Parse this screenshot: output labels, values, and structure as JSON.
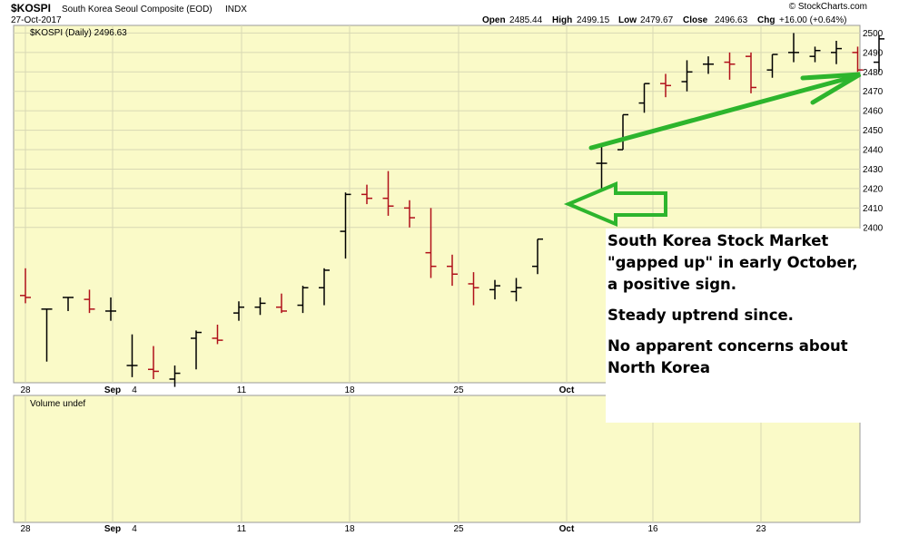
{
  "header": {
    "symbol": "$KOSPI",
    "name": "South Korea Seoul Composite (EOD)",
    "exchange": "INDX",
    "date": "27-Oct-2017",
    "open_label": "Open",
    "open": "2485.44",
    "high_label": "High",
    "high": "2499.15",
    "low_label": "Low",
    "low": "2479.67",
    "close_label": "Close",
    "close": "2496.63",
    "chg_label": "Chg",
    "chg": "+16.00 (+0.64%)",
    "watermark": "© StockCharts.com"
  },
  "legend": {
    "price": "$KOSPI (Daily) 2496.63",
    "volume": "Volume undef"
  },
  "annotation": {
    "line1": "South Korea Stock Market \"gapped up\" in early October, a positive sign.",
    "line2": "Steady uptrend since.",
    "line3": "No apparent concerns about North Korea"
  },
  "colors": {
    "panel_bg": "#fafac8",
    "up": "#000000",
    "down": "#b0101a",
    "arrow": "#2db52d",
    "grid": "#d8d8b4"
  },
  "chart_data": {
    "type": "ohlc",
    "title": "$KOSPI (Daily) 2496.63",
    "ylim": [
      2322,
      2503
    ],
    "yticks": [
      2400,
      2410,
      2420,
      2430,
      2440,
      2450,
      2460,
      2470,
      2480,
      2490,
      2500
    ],
    "x_labels": [
      "28",
      "Sep",
      "4",
      "11",
      "18",
      "25",
      "Oct",
      "16",
      "23"
    ],
    "series": [
      {
        "date": "2017-08-28",
        "open": 2365,
        "high": 2379,
        "low": 2361,
        "close": 2364
      },
      {
        "date": "2017-08-29",
        "open": 2358,
        "high": 2358,
        "low": 2331,
        "close": 2358
      },
      {
        "date": "2017-08-30",
        "open": 2364,
        "high": 2364,
        "low": 2357,
        "close": 2364
      },
      {
        "date": "2017-08-31",
        "open": 2363,
        "high": 2368,
        "low": 2356,
        "close": 2358
      },
      {
        "date": "2017-09-01",
        "open": 2357,
        "high": 2364,
        "low": 2352,
        "close": 2357
      },
      {
        "date": "2017-09-04",
        "open": 2329,
        "high": 2345,
        "low": 2323,
        "close": 2329
      },
      {
        "date": "2017-09-05",
        "open": 2327,
        "high": 2339,
        "low": 2322,
        "close": 2326
      },
      {
        "date": "2017-09-06",
        "open": 2322,
        "high": 2329,
        "low": 2318,
        "close": 2325
      },
      {
        "date": "2017-09-07",
        "open": 2343,
        "high": 2347,
        "low": 2327,
        "close": 2346
      },
      {
        "date": "2017-09-08",
        "open": 2343,
        "high": 2350,
        "low": 2340,
        "close": 2342
      },
      {
        "date": "2017-09-11",
        "open": 2356,
        "high": 2362,
        "low": 2352,
        "close": 2359
      },
      {
        "date": "2017-09-12",
        "open": 2359,
        "high": 2364,
        "low": 2355,
        "close": 2361
      },
      {
        "date": "2017-09-13",
        "open": 2359,
        "high": 2366,
        "low": 2356,
        "close": 2357
      },
      {
        "date": "2017-09-14",
        "open": 2360,
        "high": 2370,
        "low": 2356,
        "close": 2369
      },
      {
        "date": "2017-09-15",
        "open": 2369,
        "high": 2379,
        "low": 2360,
        "close": 2378
      },
      {
        "date": "2017-09-18",
        "open": 2398,
        "high": 2418,
        "low": 2384,
        "close": 2417
      },
      {
        "date": "2017-09-19",
        "open": 2417,
        "high": 2422,
        "low": 2412,
        "close": 2415
      },
      {
        "date": "2017-09-20",
        "open": 2415,
        "high": 2429,
        "low": 2406,
        "close": 2411
      },
      {
        "date": "2017-09-21",
        "open": 2410,
        "high": 2414,
        "low": 2400,
        "close": 2405
      },
      {
        "date": "2017-09-22",
        "open": 2387,
        "high": 2410,
        "low": 2374,
        "close": 2380
      },
      {
        "date": "2017-09-25",
        "open": 2380,
        "high": 2386,
        "low": 2370,
        "close": 2376
      },
      {
        "date": "2017-09-26",
        "open": 2371,
        "high": 2377,
        "low": 2360,
        "close": 2369
      },
      {
        "date": "2017-09-27",
        "open": 2368,
        "high": 2373,
        "low": 2363,
        "close": 2370
      },
      {
        "date": "2017-09-28",
        "open": 2367,
        "high": 2374,
        "low": 2362,
        "close": 2369
      },
      {
        "date": "2017-09-29",
        "open": 2380,
        "high": 2394,
        "low": 2376,
        "close": 2394
      },
      {
        "date": "2017-10-10",
        "open": 2433,
        "high": 2443,
        "low": 2419,
        "close": 2433
      },
      {
        "date": "2017-10-11",
        "open": 2440,
        "high": 2458,
        "low": 2440,
        "close": 2458
      },
      {
        "date": "2017-10-12",
        "open": 2464,
        "high": 2474,
        "low": 2459,
        "close": 2474
      },
      {
        "date": "2017-10-13",
        "open": 2474,
        "high": 2479,
        "low": 2467,
        "close": 2473
      },
      {
        "date": "2017-10-16",
        "open": 2475,
        "high": 2486,
        "low": 2470,
        "close": 2480
      },
      {
        "date": "2017-10-17",
        "open": 2484,
        "high": 2488,
        "low": 2479,
        "close": 2484
      },
      {
        "date": "2017-10-18",
        "open": 2485,
        "high": 2490,
        "low": 2476,
        "close": 2484
      },
      {
        "date": "2017-10-19",
        "open": 2488,
        "high": 2490,
        "low": 2469,
        "close": 2472
      },
      {
        "date": "2017-10-20",
        "open": 2481,
        "high": 2489,
        "low": 2477,
        "close": 2489
      },
      {
        "date": "2017-10-23",
        "open": 2490,
        "high": 2500,
        "low": 2485,
        "close": 2490
      },
      {
        "date": "2017-10-24",
        "open": 2488,
        "high": 2493,
        "low": 2485,
        "close": 2491
      },
      {
        "date": "2017-10-25",
        "open": 2490,
        "high": 2496,
        "low": 2484,
        "close": 2492
      },
      {
        "date": "2017-10-26",
        "open": 2490,
        "high": 2493,
        "low": 2480,
        "close": 2481
      },
      {
        "date": "2017-10-27",
        "open": 2485,
        "high": 2499,
        "low": 2480,
        "close": 2497
      }
    ]
  }
}
